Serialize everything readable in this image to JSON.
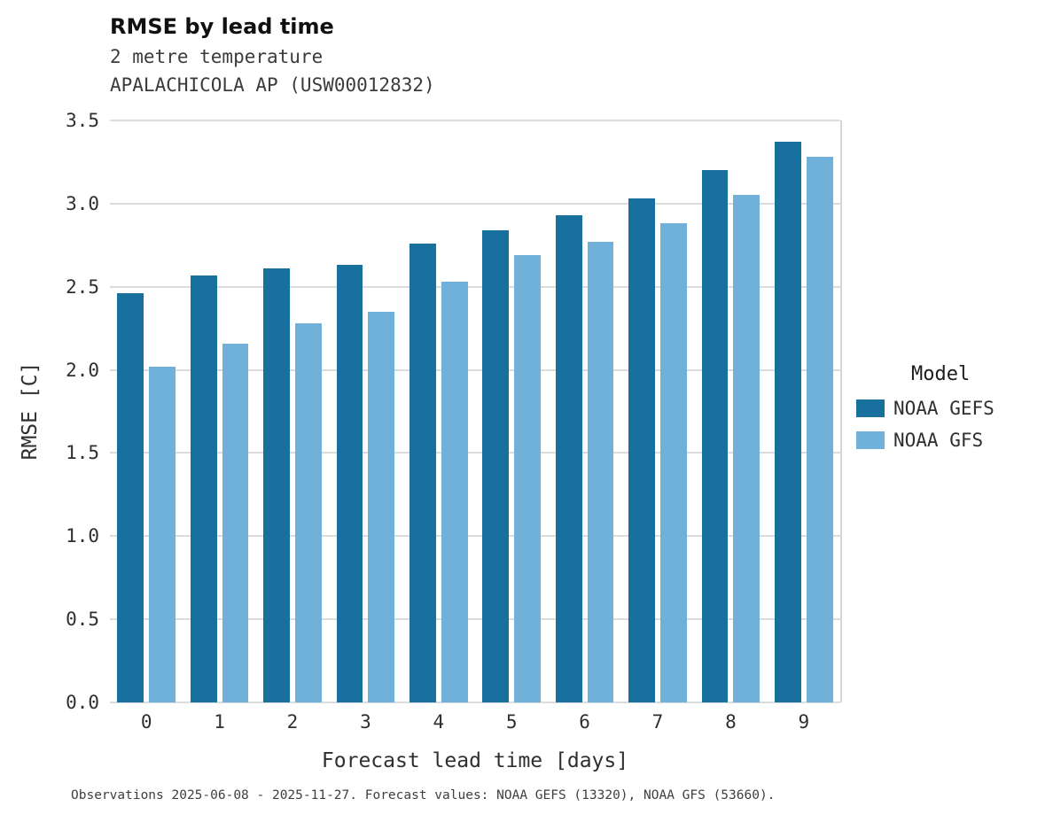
{
  "header": {
    "title": "RMSE by lead time",
    "subtitle1": "2 metre temperature",
    "subtitle2": "APALACHICOLA AP (USW00012832)"
  },
  "legend": {
    "title": "Model",
    "entries": [
      {
        "label": "NOAA GEFS",
        "color": "#17709d"
      },
      {
        "label": "NOAA GFS",
        "color": "#6fb1d9"
      }
    ]
  },
  "caption": "Observations 2025-06-08 - 2025-11-27. Forecast values: NOAA GEFS (13320), NOAA GFS (53660).",
  "chart_data": {
    "type": "bar",
    "title": "RMSE by lead time",
    "subtitle": "2 metre temperature — APALACHICOLA AP (USW00012832)",
    "categories": [
      "0",
      "1",
      "2",
      "3",
      "4",
      "5",
      "6",
      "7",
      "8",
      "9"
    ],
    "series": [
      {
        "name": "NOAA GEFS",
        "color": "#17709d",
        "values": [
          2.46,
          2.57,
          2.61,
          2.63,
          2.76,
          2.84,
          2.93,
          3.03,
          3.2,
          3.37
        ]
      },
      {
        "name": "NOAA GFS",
        "color": "#6fb1d9",
        "values": [
          2.02,
          2.16,
          2.28,
          2.35,
          2.53,
          2.69,
          2.77,
          2.88,
          3.05,
          3.28
        ]
      }
    ],
    "xlabel": "Forecast lead time [days]",
    "ylabel": "RMSE [C]",
    "ylim": [
      0,
      3.5
    ],
    "yticks": [
      0.0,
      0.5,
      1.0,
      1.5,
      2.0,
      2.5,
      3.0,
      3.5
    ],
    "grid": "horizontal",
    "legend_position": "right",
    "legend_title": "Model"
  }
}
